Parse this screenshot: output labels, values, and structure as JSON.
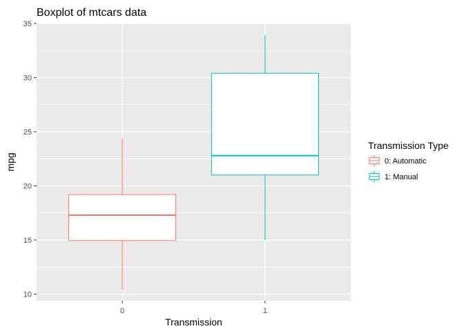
{
  "chart_data": {
    "type": "boxplot",
    "title": "Boxplot of mtcars data",
    "xlabel": "Transmission",
    "ylabel": "mpg",
    "ylim": [
      9.4,
      35.0
    ],
    "y_ticks": [
      10,
      15,
      20,
      25,
      30,
      35
    ],
    "categories": [
      "0",
      "1"
    ],
    "boxes": [
      {
        "category": "0",
        "min": 10.4,
        "q1": 14.95,
        "median": 17.3,
        "q3": 19.2,
        "max": 24.4,
        "color": "#f8766d"
      },
      {
        "category": "1",
        "min": 15.0,
        "q1": 21.0,
        "median": 22.8,
        "q3": 30.4,
        "max": 33.9,
        "color": "#00bfc4"
      }
    ],
    "legend": {
      "title": "Transmission Type",
      "placement": "right",
      "entries": [
        {
          "label": "0: Automatic",
          "color": "#f8766d"
        },
        {
          "label": "1: Manual",
          "color": "#00bfc4"
        }
      ]
    },
    "grid": true,
    "panel_background": "#ebebeb",
    "grid_color": "#ffffff"
  }
}
